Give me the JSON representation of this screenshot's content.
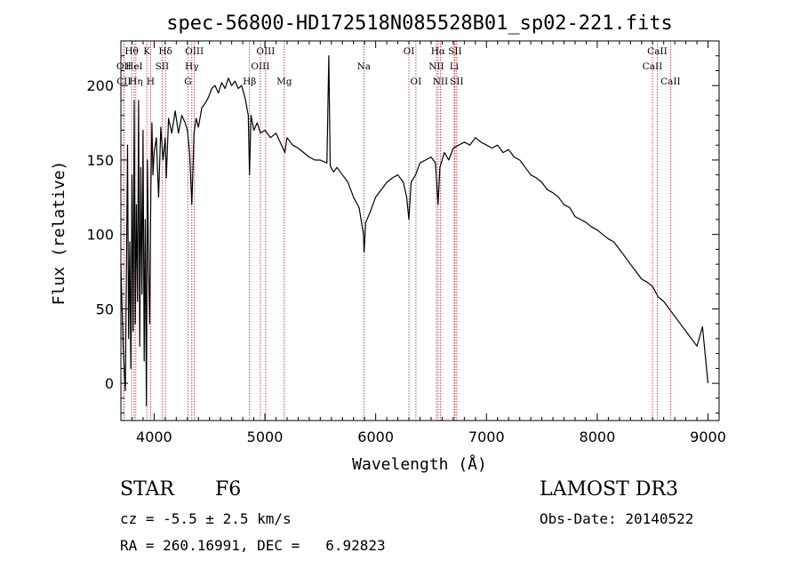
{
  "colors": {
    "spectrum": "#000000",
    "line_marker": "#b22222",
    "axes": "#000000"
  },
  "chart_data": {
    "type": "line",
    "title": "spec-56800-HD172518N085528B01_sp02-221.fits",
    "xlabel": "Wavelength (Å)",
    "ylabel": "Flux (relative)",
    "xlim": [
      3700,
      9100
    ],
    "ylim": [
      -25,
      230
    ],
    "xticks": [
      4000,
      5000,
      6000,
      7000,
      8000,
      9000
    ],
    "yticks": [
      0,
      50,
      100,
      150,
      200
    ],
    "series": [
      {
        "name": "flux",
        "points": [
          [
            3700,
            80
          ],
          [
            3720,
            25
          ],
          [
            3740,
            -5
          ],
          [
            3760,
            160
          ],
          [
            3770,
            30
          ],
          [
            3780,
            95
          ],
          [
            3790,
            10
          ],
          [
            3800,
            140
          ],
          [
            3810,
            35
          ],
          [
            3820,
            190
          ],
          [
            3830,
            40
          ],
          [
            3840,
            120
          ],
          [
            3850,
            55
          ],
          [
            3860,
            190
          ],
          [
            3870,
            25
          ],
          [
            3880,
            145
          ],
          [
            3890,
            60
          ],
          [
            3900,
            170
          ],
          [
            3910,
            15
          ],
          [
            3920,
            110
          ],
          [
            3930,
            -15
          ],
          [
            3940,
            150
          ],
          [
            3950,
            75
          ],
          [
            3960,
            40
          ],
          [
            3970,
            130
          ],
          [
            3980,
            175
          ],
          [
            3990,
            140
          ],
          [
            4000,
            155
          ],
          [
            4020,
            165
          ],
          [
            4040,
            125
          ],
          [
            4060,
            172
          ],
          [
            4080,
            150
          ],
          [
            4100,
            165
          ],
          [
            4110,
            138
          ],
          [
            4130,
            178
          ],
          [
            4160,
            168
          ],
          [
            4190,
            183
          ],
          [
            4220,
            168
          ],
          [
            4250,
            180
          ],
          [
            4280,
            175
          ],
          [
            4300,
            170
          ],
          [
            4320,
            155
          ],
          [
            4340,
            120
          ],
          [
            4360,
            168
          ],
          [
            4380,
            178
          ],
          [
            4400,
            172
          ],
          [
            4430,
            185
          ],
          [
            4460,
            188
          ],
          [
            4490,
            192
          ],
          [
            4520,
            198
          ],
          [
            4550,
            200
          ],
          [
            4580,
            195
          ],
          [
            4610,
            202
          ],
          [
            4640,
            198
          ],
          [
            4670,
            205
          ],
          [
            4700,
            200
          ],
          [
            4730,
            203
          ],
          [
            4760,
            198
          ],
          [
            4790,
            200
          ],
          [
            4820,
            192
          ],
          [
            4850,
            180
          ],
          [
            4861,
            140
          ],
          [
            4875,
            180
          ],
          [
            4900,
            170
          ],
          [
            4930,
            175
          ],
          [
            4960,
            168
          ],
          [
            5000,
            170
          ],
          [
            5050,
            165
          ],
          [
            5100,
            168
          ],
          [
            5150,
            160
          ],
          [
            5180,
            155
          ],
          [
            5200,
            165
          ],
          [
            5250,
            160
          ],
          [
            5300,
            158
          ],
          [
            5350,
            155
          ],
          [
            5400,
            152
          ],
          [
            5450,
            150
          ],
          [
            5500,
            150
          ],
          [
            5560,
            148
          ],
          [
            5577,
            220
          ],
          [
            5590,
            146
          ],
          [
            5620,
            142
          ],
          [
            5650,
            145
          ],
          [
            5700,
            140
          ],
          [
            5750,
            135
          ],
          [
            5800,
            125
          ],
          [
            5850,
            118
          ],
          [
            5890,
            100
          ],
          [
            5895,
            88
          ],
          [
            5910,
            108
          ],
          [
            5950,
            115
          ],
          [
            6000,
            125
          ],
          [
            6050,
            130
          ],
          [
            6100,
            135
          ],
          [
            6150,
            138
          ],
          [
            6200,
            140
          ],
          [
            6250,
            135
          ],
          [
            6280,
            125
          ],
          [
            6300,
            110
          ],
          [
            6320,
            135
          ],
          [
            6360,
            140
          ],
          [
            6400,
            148
          ],
          [
            6450,
            150
          ],
          [
            6500,
            152
          ],
          [
            6540,
            148
          ],
          [
            6563,
            120
          ],
          [
            6580,
            145
          ],
          [
            6620,
            155
          ],
          [
            6660,
            150
          ],
          [
            6700,
            158
          ],
          [
            6750,
            160
          ],
          [
            6800,
            162
          ],
          [
            6850,
            160
          ],
          [
            6900,
            165
          ],
          [
            6950,
            162
          ],
          [
            7000,
            160
          ],
          [
            7050,
            158
          ],
          [
            7100,
            160
          ],
          [
            7150,
            155
          ],
          [
            7200,
            157
          ],
          [
            7250,
            152
          ],
          [
            7300,
            150
          ],
          [
            7350,
            145
          ],
          [
            7400,
            140
          ],
          [
            7450,
            138
          ],
          [
            7500,
            135
          ],
          [
            7550,
            130
          ],
          [
            7600,
            128
          ],
          [
            7650,
            125
          ],
          [
            7700,
            120
          ],
          [
            7750,
            118
          ],
          [
            7800,
            112
          ],
          [
            7850,
            110
          ],
          [
            7900,
            108
          ],
          [
            7950,
            105
          ],
          [
            8000,
            103
          ],
          [
            8050,
            100
          ],
          [
            8100,
            97
          ],
          [
            8150,
            95
          ],
          [
            8200,
            90
          ],
          [
            8250,
            85
          ],
          [
            8300,
            80
          ],
          [
            8350,
            75
          ],
          [
            8400,
            70
          ],
          [
            8450,
            68
          ],
          [
            8500,
            65
          ],
          [
            8550,
            58
          ],
          [
            8600,
            55
          ],
          [
            8650,
            50
          ],
          [
            8700,
            45
          ],
          [
            8750,
            40
          ],
          [
            8800,
            35
          ],
          [
            8850,
            30
          ],
          [
            8900,
            25
          ],
          [
            8950,
            38
          ],
          [
            9000,
            0
          ]
        ]
      }
    ],
    "lines": [
      {
        "name": "CII",
        "wavelength": 3727,
        "row": 2
      },
      {
        "name": "OII",
        "wavelength": 3727,
        "row": 1
      },
      {
        "name": "Hθ",
        "wavelength": 3797,
        "row": 0
      },
      {
        "name": "HeI",
        "wavelength": 3820,
        "row": 1
      },
      {
        "name": "Hη",
        "wavelength": 3835,
        "row": 2
      },
      {
        "name": "K",
        "wavelength": 3934,
        "row": 0
      },
      {
        "name": "H",
        "wavelength": 3968,
        "row": 2
      },
      {
        "name": "SII",
        "wavelength": 4072,
        "row": 1
      },
      {
        "name": "Hδ",
        "wavelength": 4102,
        "row": 0
      },
      {
        "name": "G",
        "wavelength": 4305,
        "row": 2
      },
      {
        "name": "Hγ",
        "wavelength": 4340,
        "row": 1
      },
      {
        "name": "OIII",
        "wavelength": 4363,
        "row": 0
      },
      {
        "name": "Hβ",
        "wavelength": 4861,
        "row": 2
      },
      {
        "name": "OIII",
        "wavelength": 4959,
        "row": 1
      },
      {
        "name": "OIII",
        "wavelength": 5007,
        "row": 0
      },
      {
        "name": "Mg",
        "wavelength": 5175,
        "row": 2
      },
      {
        "name": "Na",
        "wavelength": 5893,
        "row": 1
      },
      {
        "name": "OI",
        "wavelength": 6300,
        "row": 0
      },
      {
        "name": "OI",
        "wavelength": 6363,
        "row": 2
      },
      {
        "name": "NII",
        "wavelength": 6548,
        "row": 1
      },
      {
        "name": "Hα",
        "wavelength": 6563,
        "row": 0
      },
      {
        "name": "NII",
        "wavelength": 6584,
        "row": 2
      },
      {
        "name": "Li",
        "wavelength": 6708,
        "row": 1
      },
      {
        "name": "SII",
        "wavelength": 6716,
        "row": 0
      },
      {
        "name": "SII",
        "wavelength": 6731,
        "row": 2
      },
      {
        "name": "CaII",
        "wavelength": 8498,
        "row": 1
      },
      {
        "name": "CaII",
        "wavelength": 8542,
        "row": 0
      },
      {
        "name": "CaII",
        "wavelength": 8662,
        "row": 2
      }
    ]
  },
  "info": {
    "object_class": "STAR",
    "subclass": "F6",
    "survey": "LAMOST DR3",
    "redshift": "cz = -5.5 ± 2.5 km/s",
    "obs_date": "Obs-Date: 20140522",
    "coords": "RA = 260.16991, DEC =   6.92823"
  }
}
